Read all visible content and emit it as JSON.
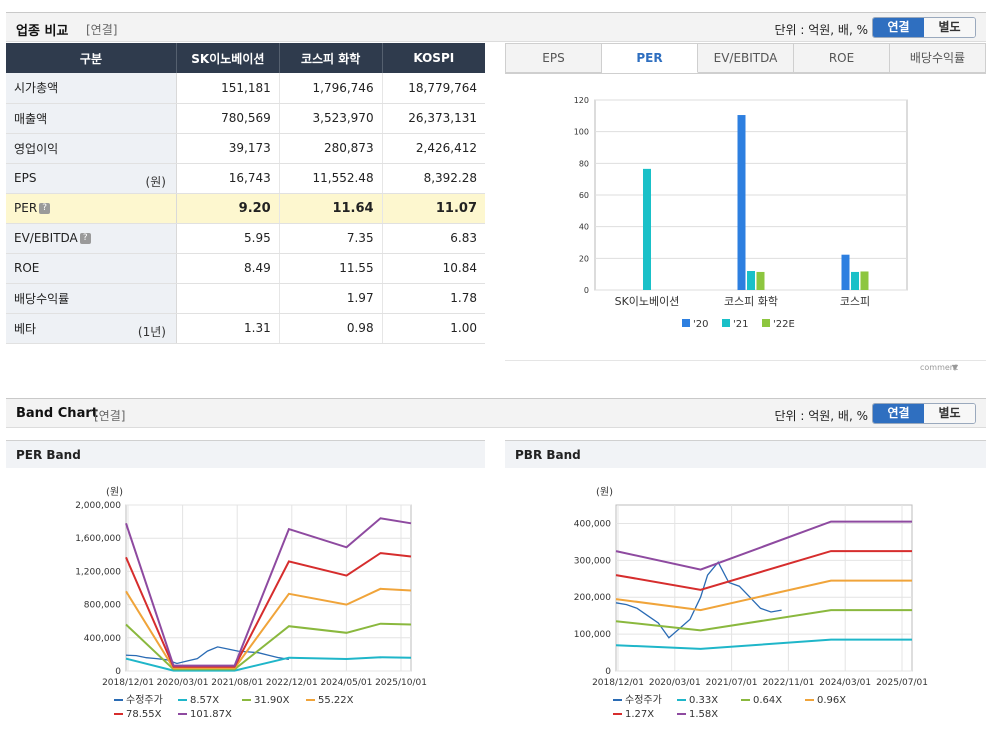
{
  "compare": {
    "title": "업종 비교",
    "basis": "[연결]",
    "unit": "단위 : 억원, 배, %",
    "toggle_on": "연결",
    "toggle_off": "별도",
    "headers": [
      "구분",
      "SK이노베이션",
      "코스피 화학",
      "KOSPI"
    ],
    "rows": [
      {
        "label": "시가총액",
        "unit": "",
        "info": false,
        "values": [
          "151,181",
          "1,796,746",
          "18,779,764"
        ]
      },
      {
        "label": "매출액",
        "unit": "",
        "info": false,
        "values": [
          "780,569",
          "3,523,970",
          "26,373,131"
        ]
      },
      {
        "label": "영업이익",
        "unit": "",
        "info": false,
        "values": [
          "39,173",
          "280,873",
          "2,426,412"
        ]
      },
      {
        "label": "EPS",
        "unit": "(원)",
        "info": false,
        "values": [
          "16,743",
          "11,552.48",
          "8,392.28"
        ]
      },
      {
        "label": "PER",
        "unit": "",
        "info": true,
        "values": [
          "9.20",
          "11.64",
          "11.07"
        ]
      },
      {
        "label": "EV/EBITDA",
        "unit": "",
        "info": true,
        "values": [
          "5.95",
          "7.35",
          "6.83"
        ]
      },
      {
        "label": "ROE",
        "unit": "",
        "info": false,
        "values": [
          "8.49",
          "11.55",
          "10.84"
        ]
      },
      {
        "label": "배당수익률",
        "unit": "",
        "info": false,
        "values": [
          "",
          "1.97",
          "1.78"
        ]
      },
      {
        "label": "베타",
        "unit": "(1년)",
        "info": false,
        "values": [
          "1.31",
          "0.98",
          "1.00"
        ]
      }
    ],
    "info_glyph": "?",
    "tabs": [
      "EPS",
      "PER",
      "EV/EBITDA",
      "ROE",
      "배당수익률"
    ],
    "active_tab": 1,
    "comment": "comment"
  },
  "band": {
    "title": "Band Chart",
    "basis": "[연결]",
    "unit": "단위 : 억원, 배, %",
    "toggle_on": "연결",
    "toggle_off": "별도",
    "per_title": "PER Band",
    "pbr_title": "PBR Band"
  },
  "chart_data": [
    {
      "type": "bar",
      "categories": [
        "SK이노베이션",
        "코스피 화학",
        "코스피"
      ],
      "series": [
        {
          "name": "'20",
          "color": "#2d7fe0",
          "values": [
            null,
            110.5,
            22.3
          ]
        },
        {
          "name": "'21",
          "color": "#19c0c8",
          "values": [
            76.5,
            12.0,
            11.4
          ]
        },
        {
          "name": "'22E",
          "color": "#8dc63f",
          "values": [
            null,
            11.4,
            11.7
          ]
        }
      ],
      "yticks": [
        "0",
        "20",
        "40",
        "60",
        "80",
        "100",
        "120"
      ],
      "ylim": [
        0,
        120
      ],
      "legend": "bottom"
    },
    {
      "type": "line",
      "ylabel": "(원)",
      "xticks": [
        "2018/12/01",
        "2020/03/01",
        "2021/08/01",
        "2022/12/01",
        "2024/05/01",
        "2025/10/01"
      ],
      "yticks": [
        "0",
        "400,000",
        "800,000",
        "1,200,000",
        "1,600,000",
        "2,000,000"
      ],
      "xlim": [
        "2018-12",
        "2025-12"
      ],
      "ylim": [
        0,
        2000000
      ],
      "series": [
        {
          "name": "수정주가",
          "color": "#2a6bb4",
          "points": [
            [
              "2018-12",
              190000
            ],
            [
              "2019-03",
              185000
            ],
            [
              "2019-06",
              160000
            ],
            [
              "2019-09",
              150000
            ],
            [
              "2019-12",
              135000
            ],
            [
              "2020-03",
              90000
            ],
            [
              "2020-06",
              120000
            ],
            [
              "2020-09",
              150000
            ],
            [
              "2020-12",
              240000
            ],
            [
              "2021-03",
              290000
            ],
            [
              "2021-06",
              265000
            ],
            [
              "2021-09",
              240000
            ],
            [
              "2021-12",
              230000
            ],
            [
              "2022-03",
              220000
            ],
            [
              "2022-06",
              190000
            ],
            [
              "2022-09",
              160000
            ],
            [
              "2022-12",
              140000
            ]
          ]
        },
        {
          "name": "8.57X",
          "color": "#1fb6c9",
          "points": [
            [
              "2018-12",
              150000
            ],
            [
              "2020-02",
              5000
            ],
            [
              "2021-08",
              5000
            ],
            [
              "2022-12",
              160000
            ],
            [
              "2024-05",
              145000
            ],
            [
              "2025-03",
              165000
            ],
            [
              "2025-12",
              160000
            ]
          ]
        },
        {
          "name": "31.90X",
          "color": "#8ab83e",
          "points": [
            [
              "2018-12",
              560000
            ],
            [
              "2020-02",
              20000
            ],
            [
              "2021-08",
              20000
            ],
            [
              "2022-12",
              540000
            ],
            [
              "2024-05",
              460000
            ],
            [
              "2025-03",
              570000
            ],
            [
              "2025-12",
              560000
            ]
          ]
        },
        {
          "name": "55.22X",
          "color": "#f0a43a",
          "points": [
            [
              "2018-12",
              960000
            ],
            [
              "2020-02",
              35000
            ],
            [
              "2021-08",
              35000
            ],
            [
              "2022-12",
              930000
            ],
            [
              "2024-05",
              800000
            ],
            [
              "2025-03",
              990000
            ],
            [
              "2025-12",
              970000
            ]
          ]
        },
        {
          "name": "78.55X",
          "color": "#d62d2d",
          "points": [
            [
              "2018-12",
              1370000
            ],
            [
              "2020-02",
              50000
            ],
            [
              "2021-08",
              50000
            ],
            [
              "2022-12",
              1320000
            ],
            [
              "2024-05",
              1150000
            ],
            [
              "2025-03",
              1420000
            ],
            [
              "2025-12",
              1380000
            ]
          ]
        },
        {
          "name": "101.87X",
          "color": "#8e4aa0",
          "points": [
            [
              "2018-12",
              1780000
            ],
            [
              "2020-02",
              65000
            ],
            [
              "2021-08",
              65000
            ],
            [
              "2022-12",
              1710000
            ],
            [
              "2024-05",
              1490000
            ],
            [
              "2025-03",
              1840000
            ],
            [
              "2025-12",
              1780000
            ]
          ]
        }
      ],
      "legend": "bottom"
    },
    {
      "type": "line",
      "ylabel": "(원)",
      "xticks": [
        "2018/12/01",
        "2020/03/01",
        "2021/07/01",
        "2022/11/01",
        "2024/03/01",
        "2025/07/01"
      ],
      "yticks": [
        "0",
        "100,000",
        "200,000",
        "300,000",
        "400,000"
      ],
      "xlim": [
        "2018-12",
        "2025-12"
      ],
      "ylim": [
        0,
        450000
      ],
      "series": [
        {
          "name": "수정주가",
          "color": "#2a6bb4",
          "points": [
            [
              "2018-12",
              185000
            ],
            [
              "2019-03",
              180000
            ],
            [
              "2019-06",
              170000
            ],
            [
              "2019-09",
              150000
            ],
            [
              "2019-12",
              130000
            ],
            [
              "2020-03",
              90000
            ],
            [
              "2020-06",
              115000
            ],
            [
              "2020-09",
              140000
            ],
            [
              "2020-12",
              200000
            ],
            [
              "2021-02",
              260000
            ],
            [
              "2021-05",
              295000
            ],
            [
              "2021-08",
              240000
            ],
            [
              "2021-11",
              230000
            ],
            [
              "2022-02",
              200000
            ],
            [
              "2022-05",
              170000
            ],
            [
              "2022-08",
              160000
            ],
            [
              "2022-11",
              165000
            ]
          ]
        },
        {
          "name": "0.33X",
          "color": "#1fb6c9",
          "points": [
            [
              "2018-12",
              70000
            ],
            [
              "2020-12",
              60000
            ],
            [
              "2024-01",
              85000
            ],
            [
              "2025-12",
              85000
            ]
          ]
        },
        {
          "name": "0.64X",
          "color": "#8ab83e",
          "points": [
            [
              "2018-12",
              135000
            ],
            [
              "2020-12",
              110000
            ],
            [
              "2024-01",
              165000
            ],
            [
              "2025-12",
              165000
            ]
          ]
        },
        {
          "name": "0.96X",
          "color": "#f0a43a",
          "points": [
            [
              "2018-12",
              195000
            ],
            [
              "2020-12",
              165000
            ],
            [
              "2024-01",
              245000
            ],
            [
              "2025-12",
              245000
            ]
          ]
        },
        {
          "name": "1.27X",
          "color": "#d62d2d",
          "points": [
            [
              "2018-12",
              260000
            ],
            [
              "2020-12",
              220000
            ],
            [
              "2024-01",
              325000
            ],
            [
              "2025-12",
              325000
            ]
          ]
        },
        {
          "name": "1.58X",
          "color": "#8e4aa0",
          "points": [
            [
              "2018-12",
              325000
            ],
            [
              "2020-12",
              275000
            ],
            [
              "2024-01",
              405000
            ],
            [
              "2025-12",
              405000
            ]
          ]
        }
      ],
      "legend": "bottom"
    }
  ]
}
